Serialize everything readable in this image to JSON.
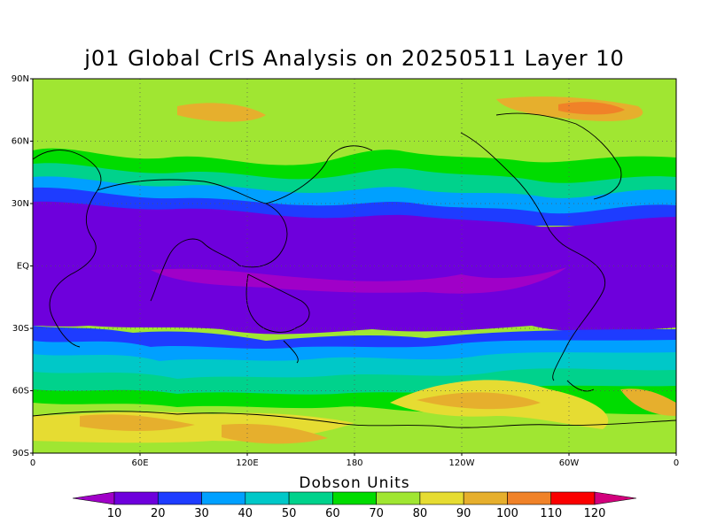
{
  "title": "j01 Global CrIS Analysis on 20250511 Layer 10",
  "colorbar_title": "Dobson Units",
  "map": {
    "projection": "cylindrical-equidistant",
    "lon_range": [
      0,
      360
    ],
    "lat_range": [
      -90,
      90
    ],
    "lat_ticks": [
      "90N",
      "60N",
      "30N",
      "EQ",
      "30S",
      "60S",
      "90S"
    ],
    "lon_ticks": [
      "0",
      "60E",
      "120E",
      "180",
      "120W",
      "60W",
      "0"
    ],
    "grid": "dotted"
  },
  "colorbar": {
    "levels": [
      "10",
      "20",
      "30",
      "40",
      "50",
      "60",
      "70",
      "80",
      "90",
      "100",
      "110",
      "120"
    ],
    "colors": [
      "#a000c8",
      "#6e00dc",
      "#1e3cff",
      "#00a0ff",
      "#00c8c8",
      "#00d28c",
      "#00dc00",
      "#a0e632",
      "#e6dc32",
      "#e6af2d",
      "#f08228",
      "#fa0000",
      "#d2007c"
    ]
  },
  "chart_data": {
    "type": "heatmap",
    "title": "j01 Global CrIS Analysis on 20250511 Layer 10",
    "colorbar_label": "Dobson Units",
    "lat_bands": [
      {
        "lat": [
          90,
          75
        ],
        "value_du": 85
      },
      {
        "lat": [
          75,
          60
        ],
        "value_du": 80
      },
      {
        "lat": [
          60,
          45
        ],
        "value_du": 65
      },
      {
        "lat": [
          45,
          30
        ],
        "value_du": 35
      },
      {
        "lat": [
          30,
          -25
        ],
        "value_du": 15
      },
      {
        "lat": [
          -25,
          -40
        ],
        "value_du": 30
      },
      {
        "lat": [
          -40,
          -60
        ],
        "value_du": 60
      },
      {
        "lat": [
          -60,
          -75
        ],
        "value_du": 75
      },
      {
        "lat": [
          -75,
          -90
        ],
        "value_du": 90
      }
    ]
  }
}
